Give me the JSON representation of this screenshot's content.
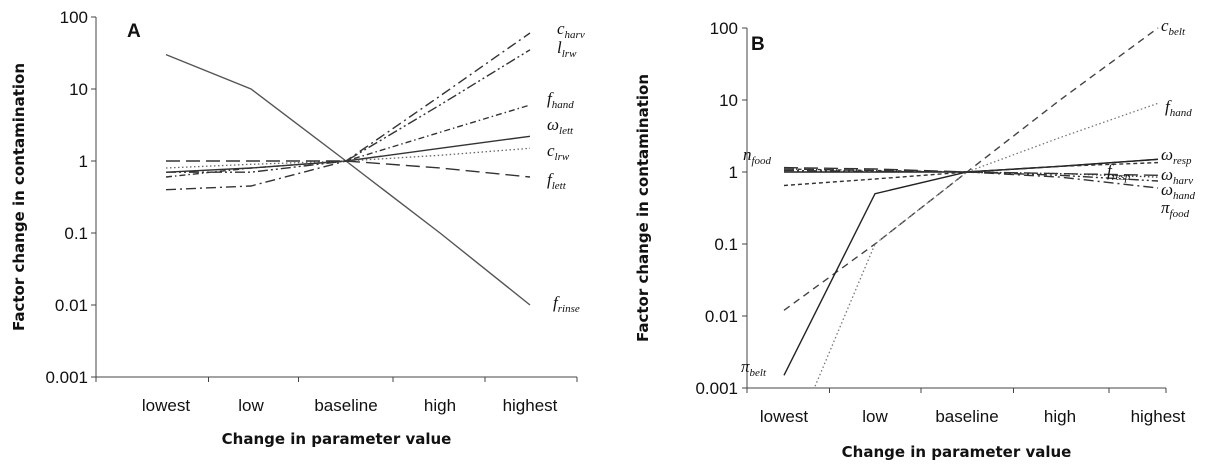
{
  "chart_data": [
    {
      "type": "line",
      "panel": "A",
      "yscale": "log",
      "ylim": [
        0.001,
        100
      ],
      "yticks": [
        0.001,
        0.01,
        0.1,
        1,
        10,
        100
      ],
      "ytick_labels": [
        "0.001",
        "0.01",
        "0.1",
        "1",
        "10",
        "100"
      ],
      "categories": [
        "lowest",
        "low",
        "baseline",
        "high",
        "highest"
      ],
      "xlabel": "Change in parameter value",
      "ylabel": "Factor change in contamination",
      "series": [
        {
          "name": "f_rinse",
          "label_main": "f",
          "label_sub": "rinse",
          "dash": "solid",
          "color": "#555555",
          "values": [
            30,
            10,
            1,
            0.1,
            0.01
          ]
        },
        {
          "name": "c_harv",
          "label_main": "c",
          "label_sub": "harv",
          "dash": "dashdot",
          "color": "#333333",
          "values": [
            0.4,
            0.45,
            1,
            8,
            60
          ]
        },
        {
          "name": "l_lrw",
          "label_main": "l",
          "label_sub": "lrw",
          "dash": "dashdotdot",
          "color": "#333333",
          "values": [
            0.7,
            0.7,
            1,
            6,
            35
          ]
        },
        {
          "name": "f_hand",
          "label_main": "f",
          "label_sub": "hand",
          "dash": "dashdot-fine",
          "color": "#333333",
          "values": [
            0.6,
            0.8,
            1,
            2.5,
            6
          ]
        },
        {
          "name": "ω_lett",
          "label_main": "ω",
          "label_sub": "lett",
          "dash": "solid",
          "color": "#333333",
          "values": [
            0.7,
            0.8,
            1,
            1.5,
            2.2
          ]
        },
        {
          "name": "c_lrw",
          "label_main": "c",
          "label_sub": "lrw",
          "dash": "dotted",
          "color": "#666666",
          "values": [
            0.8,
            0.9,
            1,
            1.2,
            1.5
          ]
        },
        {
          "name": "f_lett",
          "label_main": "f",
          "label_sub": "lett",
          "dash": "longdash",
          "color": "#333333",
          "values": [
            1,
            1,
            1,
            0.8,
            0.6
          ]
        }
      ]
    },
    {
      "type": "line",
      "panel": "B",
      "yscale": "log",
      "ylim": [
        0.001,
        100
      ],
      "yticks": [
        0.001,
        0.01,
        0.1,
        1,
        10,
        100
      ],
      "ytick_labels": [
        "0.001",
        "0.01",
        "0.1",
        "1",
        "10",
        "100"
      ],
      "categories": [
        "lowest",
        "low",
        "baseline",
        "high",
        "highest"
      ],
      "xlabel": "Change in parameter value",
      "ylabel": "Factor change in contamination",
      "series": [
        {
          "name": "c_belt",
          "label_main": "c",
          "label_sub": "belt",
          "dash": "dashed",
          "color": "#444444",
          "values": [
            0.012,
            0.1,
            1,
            10,
            100
          ]
        },
        {
          "name": "f_hand",
          "label_main": "f",
          "label_sub": "hand",
          "dash": "dotted",
          "color": "#777777",
          "values": [
            0.0001,
            0.1,
            1,
            3,
            9
          ]
        },
        {
          "name": "π_belt",
          "label_main": "π",
          "label_sub": "belt",
          "dash": "solid",
          "color": "#222222",
          "values": [
            0.0015,
            0.5,
            1,
            1.2,
            1.5
          ]
        },
        {
          "name": "ω_resp",
          "label_main": "ω",
          "label_sub": "resp",
          "dash": "solid",
          "color": "#222222",
          "values": [
            1,
            1,
            1,
            1.2,
            1.5
          ]
        },
        {
          "name": "n_food",
          "label_main": "n",
          "label_sub": "food",
          "dash": "longdash",
          "color": "#333333",
          "values": [
            1.15,
            1.1,
            1,
            0.95,
            0.9
          ]
        },
        {
          "name": "ω_harv",
          "label_main": "ω",
          "label_sub": "harv",
          "dash": "shortdash",
          "color": "#333333",
          "values": [
            0.65,
            0.8,
            1,
            1.2,
            1.35
          ]
        },
        {
          "name": "ω_hand",
          "label_main": "ω",
          "label_sub": "hand",
          "dash": "dashdot",
          "color": "#333333",
          "values": [
            1.1,
            1.05,
            1,
            0.85,
            0.6
          ]
        },
        {
          "name": "f_resp",
          "label_main": "f",
          "label_sub": "resp",
          "dash": "dashdotdot",
          "color": "#333333",
          "values": [
            1.05,
            1.02,
            1,
            0.9,
            0.75
          ]
        },
        {
          "name": "π_food",
          "label_main": "π",
          "label_sub": "food",
          "dash": "dotted",
          "color": "#333333",
          "values": [
            1.1,
            1.05,
            1,
            0.95,
            0.85
          ]
        }
      ]
    }
  ]
}
